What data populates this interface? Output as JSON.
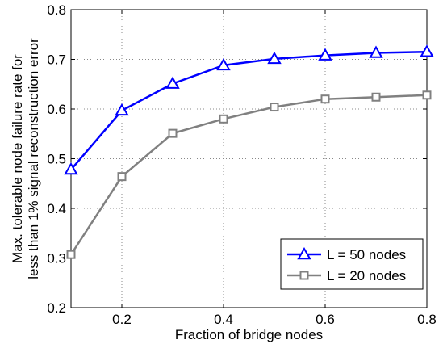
{
  "chart_data": {
    "type": "line",
    "x": [
      0.1,
      0.2,
      0.3,
      0.4,
      0.5,
      0.6,
      0.7,
      0.8
    ],
    "series": [
      {
        "name": "L = 50 nodes",
        "values": [
          0.478,
          0.597,
          0.651,
          0.688,
          0.701,
          0.708,
          0.713,
          0.715
        ],
        "color": "#0000ff",
        "marker": "triangle"
      },
      {
        "name": "L = 20 nodes",
        "values": [
          0.307,
          0.464,
          0.551,
          0.58,
          0.604,
          0.62,
          0.624,
          0.628
        ],
        "color": "#808080",
        "marker": "square"
      }
    ],
    "xlabel": "Fraction of bridge nodes",
    "ylabel_lines": [
      "Max. tolerable node failure rate for",
      "less than 1% signal reconstruction error"
    ],
    "xlim": [
      0.1,
      0.8
    ],
    "ylim": [
      0.2,
      0.8
    ],
    "xticks": [
      "0.2",
      "0.4",
      "0.6",
      "0.8"
    ],
    "xtick_values": [
      0.2,
      0.4,
      0.6,
      0.8
    ],
    "yticks": [
      "0.2",
      "0.3",
      "0.4",
      "0.5",
      "0.6",
      "0.7",
      "0.8"
    ],
    "ytick_values": [
      0.2,
      0.3,
      0.4,
      0.5,
      0.6,
      0.7,
      0.8
    ],
    "grid": true,
    "legend_position": "bottom-right"
  }
}
